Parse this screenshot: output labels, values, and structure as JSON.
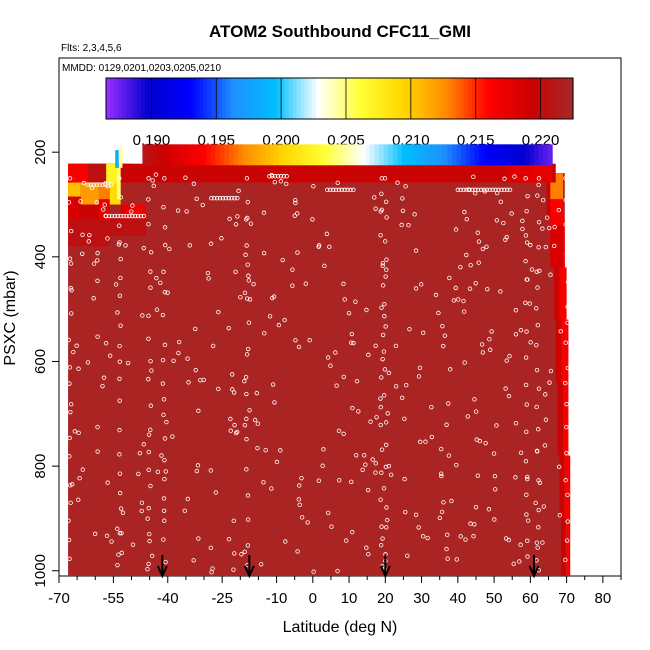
{
  "chart_data": {
    "type": "heatmap",
    "title": "ATOM2 Southbound CFC11_GMI",
    "subtitle_flights": "Flts: 2,3,4,5,6",
    "subtitle_dates": "MMDD: 0129,0201,0203,0205,0210",
    "xlabel": "Latitude (deg N)",
    "ylabel": "PSXC (mbar)",
    "xlim": [
      -70,
      85
    ],
    "ylim": [
      1010,
      20
    ],
    "x_ticks": [
      -70,
      -55,
      -40,
      -25,
      -10,
      0,
      10,
      20,
      30,
      40,
      50,
      60,
      70,
      80
    ],
    "x_minor_ticks": [
      -65,
      -60,
      -50,
      -45,
      -35,
      -30,
      -20,
      -15,
      -5,
      5,
      15,
      25,
      35,
      45,
      55,
      65,
      75,
      85
    ],
    "y_ticks": [
      200,
      400,
      600,
      800,
      1000
    ],
    "colorbar": {
      "min": 0.1865,
      "max": 0.2225,
      "ticks": [
        "0.190",
        "0.195",
        "0.200",
        "0.205",
        "0.210",
        "0.215",
        "0.220"
      ],
      "tick_values": [
        0.19,
        0.195,
        0.2,
        0.205,
        0.21,
        0.215,
        0.22
      ],
      "colors": [
        "#9b30ff",
        "#0000cd",
        "#0000ff",
        "#1e90ff",
        "#00bfff",
        "#ffffff",
        "#ffff33",
        "#ffd700",
        "#ff8c00",
        "#ff0000",
        "#cd0000",
        "#a52a2a"
      ]
    },
    "background_value": 0.222,
    "field_lat_range": [
      -67.5,
      71
    ],
    "top_band": {
      "pressure_range": [
        185,
        225
      ],
      "lat_range": [
        -47,
        66
      ],
      "values_from": 0.221,
      "values_to": 0.1875
    },
    "arrows_lat": [
      -41.5,
      -17.5,
      20,
      61
    ]
  }
}
